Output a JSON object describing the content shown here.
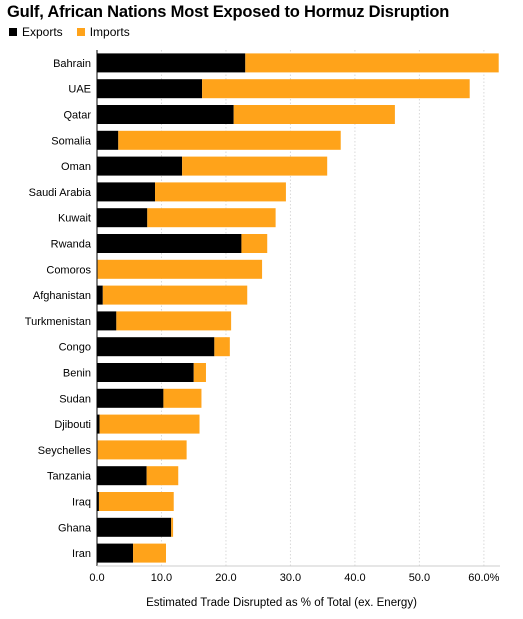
{
  "chart_data": {
    "type": "bar",
    "orientation": "horizontal",
    "stacked": true,
    "title": "Gulf, African Nations Most Exposed to Hormuz Disruption",
    "xlabel": "Estimated Trade Disrupted as % of Total (ex. Energy)",
    "ylabel": "",
    "xlim": [
      0,
      62.5
    ],
    "ticks": [
      "0.0",
      "10.0",
      "20.0",
      "30.0",
      "40.0",
      "50.0",
      "60.0%"
    ],
    "tick_values": [
      0,
      10,
      20,
      30,
      40,
      50,
      60
    ],
    "grid": true,
    "legend_position": "top-left",
    "categories": [
      "Bahrain",
      "UAE",
      "Qatar",
      "Somalia",
      "Oman",
      "Saudi Arabia",
      "Kuwait",
      "Rwanda",
      "Comoros",
      "Afghanistan",
      "Turkmenistan",
      "Congo",
      "Benin",
      "Sudan",
      "Djibouti",
      "Seychelles",
      "Tanzania",
      "Iraq",
      "Ghana",
      "Iran"
    ],
    "series": [
      {
        "name": "Exports",
        "color": "#000000",
        "values": [
          23.0,
          16.3,
          21.2,
          3.3,
          13.2,
          9.0,
          7.8,
          22.4,
          0.1,
          0.9,
          3.0,
          18.2,
          15.0,
          10.3,
          0.4,
          0.1,
          7.7,
          0.3,
          11.5,
          5.6
        ]
      },
      {
        "name": "Imports",
        "color": "#FFA31A",
        "values": [
          39.3,
          41.5,
          25.0,
          34.5,
          22.5,
          20.3,
          19.9,
          4.0,
          25.5,
          22.4,
          17.8,
          2.4,
          1.9,
          5.9,
          15.5,
          13.8,
          4.9,
          11.6,
          0.3,
          5.1
        ]
      }
    ]
  }
}
